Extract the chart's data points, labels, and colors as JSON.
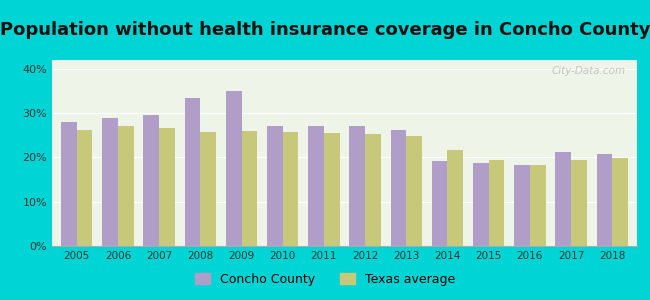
{
  "title": "Population without health insurance coverage in Concho County",
  "years": [
    2005,
    2006,
    2007,
    2008,
    2009,
    2010,
    2011,
    2012,
    2013,
    2014,
    2015,
    2016,
    2017,
    2018
  ],
  "concho_values": [
    0.28,
    0.29,
    0.295,
    0.335,
    0.351,
    0.272,
    0.27,
    0.272,
    0.262,
    0.193,
    0.187,
    0.182,
    0.213,
    0.207
  ],
  "texas_values": [
    0.261,
    0.271,
    0.267,
    0.257,
    0.26,
    0.258,
    0.256,
    0.254,
    0.249,
    0.217,
    0.194,
    0.184,
    0.194,
    0.198
  ],
  "concho_color": "#b09ec9",
  "texas_color": "#c8c87a",
  "background_outer": "#00d4d4",
  "background_inner": "#eef5e8",
  "title_fontsize": 13,
  "ylim": [
    0,
    0.42
  ],
  "yticks": [
    0.0,
    0.1,
    0.2,
    0.3,
    0.4
  ],
  "ytick_labels": [
    "0%",
    "10%",
    "20%",
    "30%",
    "40%"
  ],
  "bar_width": 0.38,
  "legend_concho": "Concho County",
  "legend_texas": "Texas average",
  "watermark": "City-Data.com"
}
